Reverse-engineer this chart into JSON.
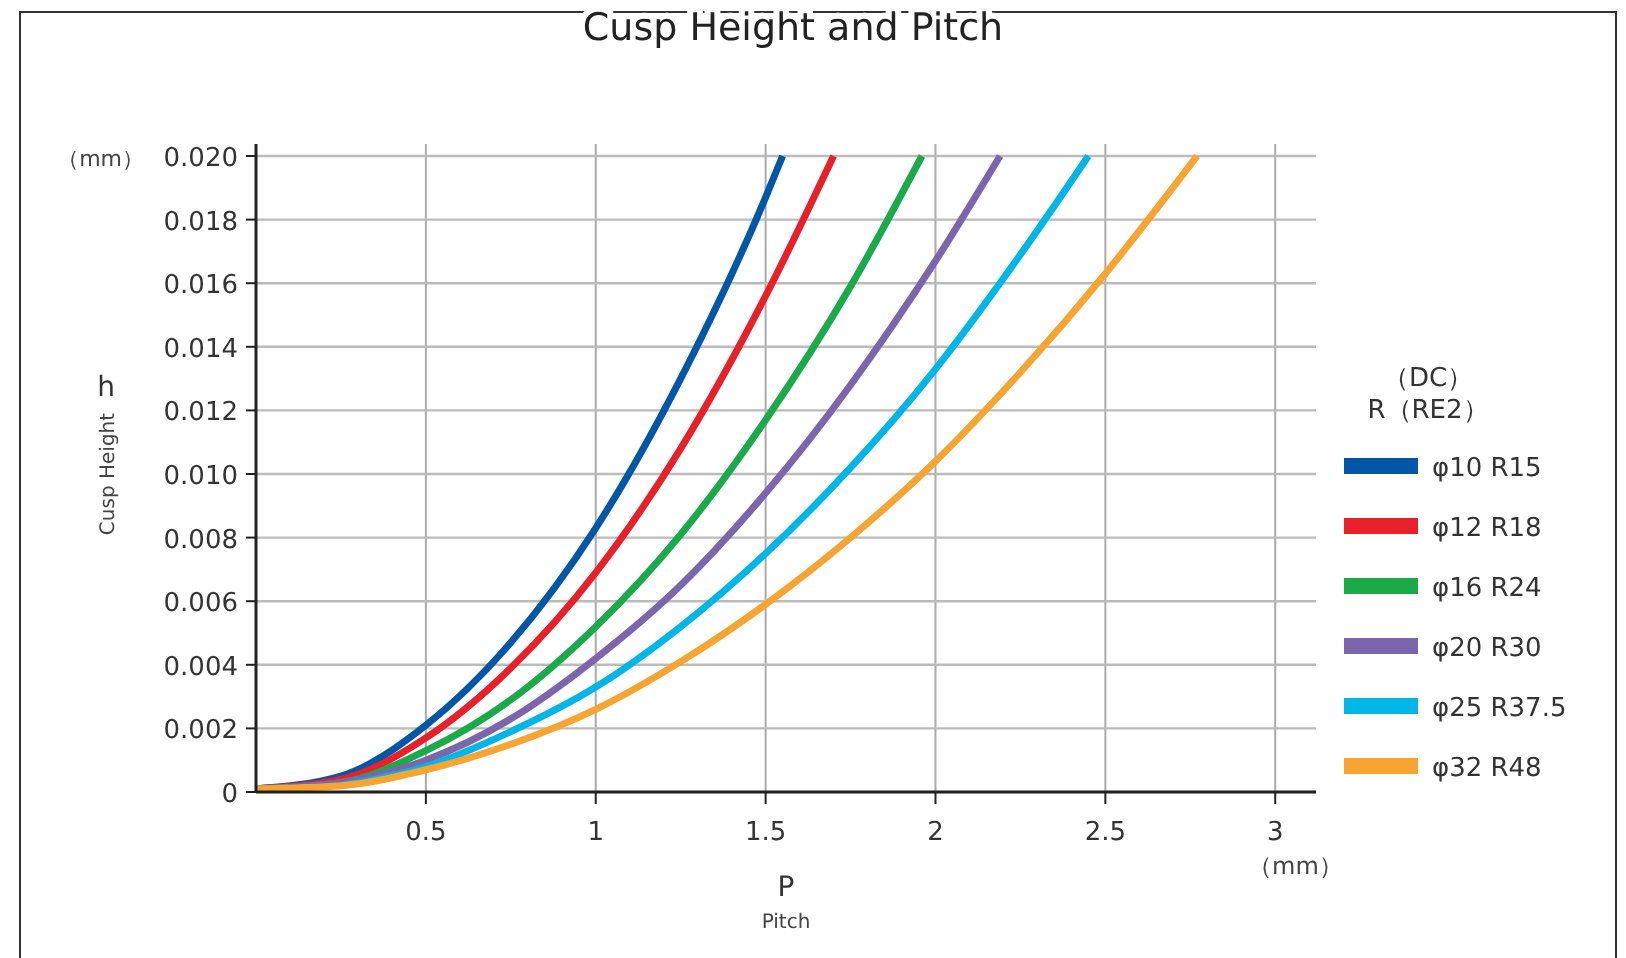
{
  "chart_data": {
    "type": "line",
    "title": "Cusp Height and Pitch",
    "xlabel": "P",
    "ylabel": "h",
    "annotations": [
      "Pitch",
      "Cusp Height",
      "（mm）",
      "（mm）"
    ],
    "legend_title": "（DC）\nR（RE2）",
    "legend": "right",
    "grid": true,
    "line_style": "solid",
    "marker": "none",
    "xlim": [
      0,
      3.12
    ],
    "xticks": [
      0.5,
      1,
      1.5,
      2,
      2.5,
      3
    ],
    "ylim": [
      0,
      0.02
    ],
    "yticks": [
      0,
      0.002,
      0.004,
      0.006,
      0.008,
      {
        "value": 0.01,
        "label": "0.010"
      },
      0.012,
      0.014,
      0.016,
      0.018,
      {
        "value": 0.02,
        "label": "0.020"
      }
    ],
    "series": [
      {
        "name": "φ10 R15",
        "color": "#0057a8",
        "x": [
          0,
          0.25,
          0.5,
          0.75,
          1,
          1.25,
          1.5,
          1.55
        ],
        "values": [
          0.0001,
          0.0005,
          0.0021,
          0.0047,
          0.0083,
          0.013,
          0.0187,
          0.02
        ]
      },
      {
        "name": "φ12 R18",
        "color": "#e8202a",
        "x": [
          0,
          0.25,
          0.5,
          0.75,
          1,
          1.25,
          1.5,
          1.7
        ],
        "values": [
          0.0001,
          0.0004,
          0.0017,
          0.0039,
          0.0069,
          0.0108,
          0.0156,
          0.02
        ]
      },
      {
        "name": "φ16 R24",
        "color": "#1aaa4a",
        "x": [
          0,
          0.25,
          0.5,
          0.75,
          1,
          1.25,
          1.5,
          1.75,
          1.96
        ],
        "values": [
          0.0001,
          0.0003,
          0.0013,
          0.0029,
          0.0052,
          0.0081,
          0.0117,
          0.0159,
          0.02
        ]
      },
      {
        "name": "φ20 R30",
        "color": "#7b66ad",
        "x": [
          0,
          0.25,
          0.5,
          0.75,
          1,
          1.25,
          1.5,
          1.75,
          2,
          2.19
        ],
        "values": [
          0.0001,
          0.0003,
          0.001,
          0.0023,
          0.0042,
          0.0065,
          0.0094,
          0.0128,
          0.0167,
          0.02
        ]
      },
      {
        "name": "φ25 R37.5",
        "color": "#00b5e8",
        "x": [
          0.25,
          0.5,
          0.75,
          1,
          1.25,
          1.5,
          1.75,
          2,
          2.25,
          2.45
        ],
        "values": [
          0.0002,
          0.0008,
          0.0019,
          0.0033,
          0.0052,
          0.0075,
          0.0102,
          0.0133,
          0.0169,
          0.02
        ]
      },
      {
        "name": "φ32 R48",
        "color": "#f7a433",
        "x": [
          0,
          0.25,
          0.5,
          0.75,
          1,
          1.25,
          1.5,
          1.75,
          2,
          2.25,
          2.5,
          2.77
        ],
        "values": [
          0.0001,
          0.0002,
          0.0007,
          0.0015,
          0.0026,
          0.0041,
          0.0059,
          0.008,
          0.0104,
          0.0132,
          0.0163,
          0.02
        ]
      }
    ]
  }
}
